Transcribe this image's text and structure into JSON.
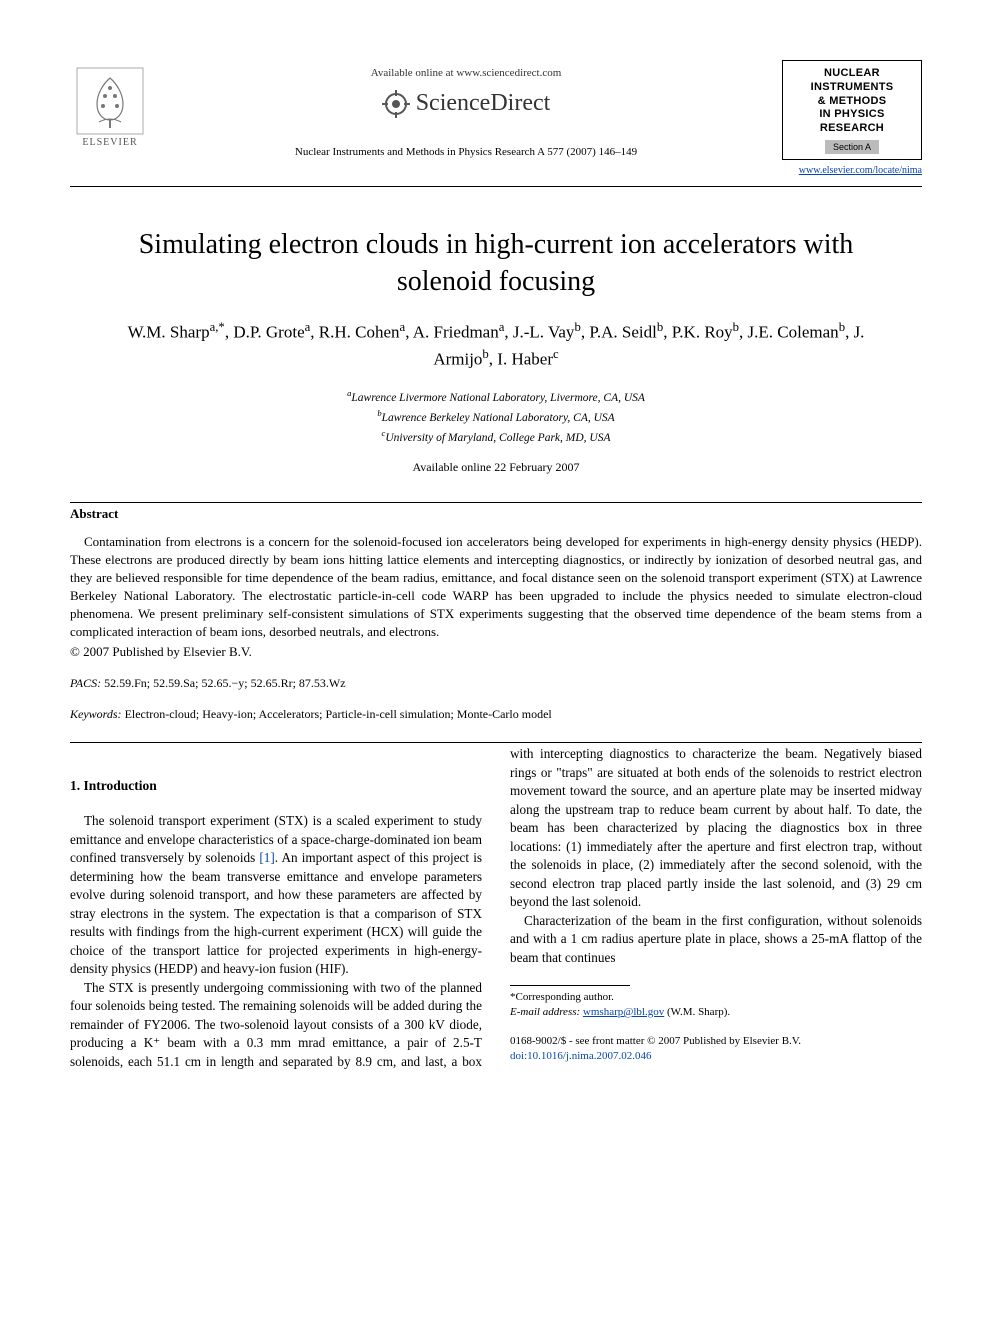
{
  "header": {
    "available_online": "Available online at www.sciencedirect.com",
    "sciencedirect": "ScienceDirect",
    "journal_ref": "Nuclear Instruments and Methods in Physics Research A 577 (2007) 146–149",
    "elsevier_label": "ELSEVIER",
    "journal_box": {
      "line1": "NUCLEAR",
      "line2": "INSTRUMENTS",
      "line3": "& METHODS",
      "line4": "IN PHYSICS",
      "line5": "RESEARCH",
      "section": "Section A"
    },
    "journal_link": "www.elsevier.com/locate/nima"
  },
  "title": "Simulating electron clouds in high-current ion accelerators with solenoid focusing",
  "authors_html": "W.M. Sharp<sup>a,*</sup>, D.P. Grote<sup>a</sup>, R.H. Cohen<sup>a</sup>, A. Friedman<sup>a</sup>, J.-L. Vay<sup>b</sup>, P.A. Seidl<sup>b</sup>, P.K. Roy<sup>b</sup>, J.E. Coleman<sup>b</sup>, J. Armijo<sup>b</sup>, I. Haber<sup>c</sup>",
  "affiliations": {
    "a": "Lawrence Livermore National Laboratory, Livermore, CA, USA",
    "b": "Lawrence Berkeley National Laboratory, CA, USA",
    "c": "University of Maryland, College Park, MD, USA"
  },
  "date_online": "Available online 22 February 2007",
  "abstract": {
    "heading": "Abstract",
    "text": "Contamination from electrons is a concern for the solenoid-focused ion accelerators being developed for experiments in high-energy density physics (HEDP). These electrons are produced directly by beam ions hitting lattice elements and intercepting diagnostics, or indirectly by ionization of desorbed neutral gas, and they are believed responsible for time dependence of the beam radius, emittance, and focal distance seen on the solenoid transport experiment (STX) at Lawrence Berkeley National Laboratory. The electrostatic particle-in-cell code WARP has been upgraded to include the physics needed to simulate electron-cloud phenomena. We present preliminary self-consistent simulations of STX experiments suggesting that the observed time dependence of the beam stems from a complicated interaction of beam ions, desorbed neutrals, and electrons.",
    "copyright": "© 2007 Published by Elsevier B.V."
  },
  "pacs": {
    "label": "PACS:",
    "value": "52.59.Fn; 52.59.Sa; 52.65.−y; 52.65.Rr; 87.53.Wz"
  },
  "keywords": {
    "label": "Keywords:",
    "value": "Electron-cloud; Heavy-ion; Accelerators; Particle-in-cell simulation; Monte-Carlo model"
  },
  "body": {
    "section1_heading": "1.  Introduction",
    "p1_a": "The solenoid transport experiment (STX) is a scaled experiment to study emittance and envelope characteristics of a space-charge-dominated ion beam confined transversely by solenoids ",
    "p1_ref": "[1]",
    "p1_b": ". An important aspect of this project is determining how the beam transverse emittance and envelope parameters evolve during solenoid transport, and how these parameters are affected by stray electrons in the system. The expectation is that a comparison of STX results with findings from the high-current experiment (HCX) will guide the choice of the transport lattice for projected experiments in high-energy-density physics (HEDP) and heavy-ion fusion (HIF).",
    "p2": "The STX is presently undergoing commissioning with two of the planned four solenoids being tested. The remaining solenoids will be added during the remainder of FY2006. The two-solenoid layout consists of a 300 kV diode, producing a K⁺ beam with a 0.3 mm mrad emittance, a pair of 2.5-T solenoids, each 51.1 cm in length and separated by 8.9 cm, and last, a box with intercepting diagnostics to characterize the beam. Negatively biased rings or \"traps\" are situated at both ends of the solenoids to restrict electron movement toward the source, and an aperture plate may be inserted midway along the upstream trap to reduce beam current by about half. To date, the beam has been characterized by placing the diagnostics box in three locations: (1) immediately after the aperture and first electron trap, without the solenoids in place, (2) immediately after the second solenoid, with the second electron trap placed partly inside the last solenoid, and (3) 29 cm beyond the last solenoid.",
    "p3": "Characterization of the beam in the first configuration, without solenoids and with a 1 cm radius aperture plate in place, shows a 25-mA flattop of the beam that continues"
  },
  "footnotes": {
    "corresponding": "*Corresponding author.",
    "email_label": "E-mail address:",
    "email": "wmsharp@lbl.gov",
    "email_person": "(W.M. Sharp)."
  },
  "footer": {
    "issn": "0168-9002/$ - see front matter © 2007 Published by Elsevier B.V.",
    "doi": "doi:10.1016/j.nima.2007.02.046"
  },
  "colors": {
    "link": "#0645ad",
    "text": "#000000",
    "bg": "#ffffff"
  }
}
